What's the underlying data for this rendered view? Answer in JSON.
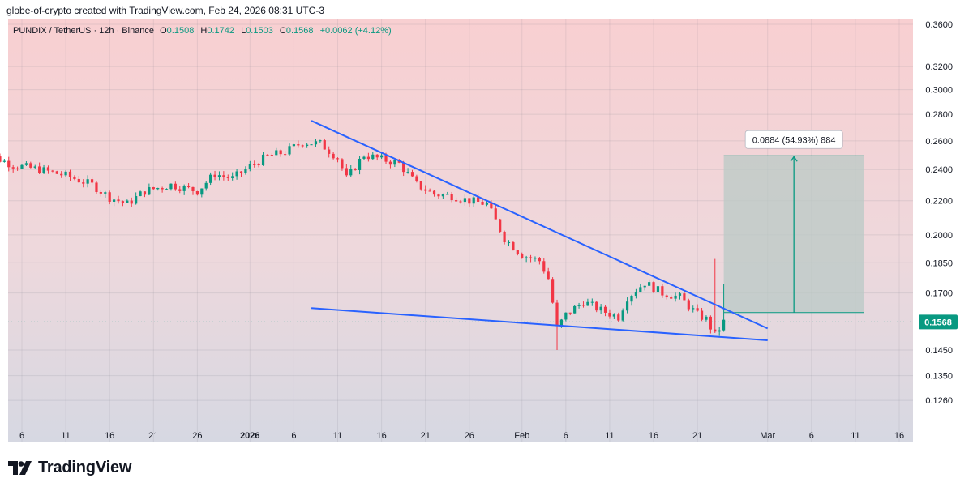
{
  "credit": "globe-of-crypto created with TradingView.com, Feb 24, 2026 08:31 UTC-3",
  "legend": {
    "symbol": "PUNDIX / TetherUS · 12h · Binance",
    "open_label": "O",
    "open": "0.1508",
    "high_label": "H",
    "high": "0.1742",
    "low_label": "L",
    "low": "0.1503",
    "close_label": "C",
    "close": "0.1568",
    "change": "+0.0062 (+4.12%)"
  },
  "brand": {
    "name": "TradingView",
    "icon": "tradingview-logo-icon"
  },
  "colors": {
    "up": "#089981",
    "down": "#f23645",
    "trendline": "#2962ff",
    "price_tag": "#089981",
    "measure_box": "#b9c9c6",
    "measure_arrow": "#089981"
  },
  "chart_data": {
    "type": "candlestick",
    "symbol": "PUNDIX / TetherUS",
    "interval": "12h",
    "exchange": "Binance",
    "last_price": "0.1568",
    "y_scale": "log",
    "y_ticks": [
      "0.3600",
      "0.3200",
      "0.3000",
      "0.2800",
      "0.2600",
      "0.2400",
      "0.2200",
      "0.2000",
      "0.1850",
      "0.1700",
      "0.1450",
      "0.1350",
      "0.1260"
    ],
    "x_ticks": [
      {
        "label": "6",
        "date": "2025-12-06"
      },
      {
        "label": "11",
        "date": "2025-12-11"
      },
      {
        "label": "16",
        "date": "2025-12-16"
      },
      {
        "label": "21",
        "date": "2025-12-21"
      },
      {
        "label": "26",
        "date": "2025-12-26"
      },
      {
        "label": "2026",
        "date": "2026-01-01"
      },
      {
        "label": "6",
        "date": "2026-01-06"
      },
      {
        "label": "11",
        "date": "2026-01-11"
      },
      {
        "label": "16",
        "date": "2026-01-16"
      },
      {
        "label": "21",
        "date": "2026-01-21"
      },
      {
        "label": "26",
        "date": "2026-01-26"
      },
      {
        "label": "Feb",
        "date": "2026-02-01"
      },
      {
        "label": "6",
        "date": "2026-02-06"
      },
      {
        "label": "11",
        "date": "2026-02-11"
      },
      {
        "label": "16",
        "date": "2026-02-16"
      },
      {
        "label": "21",
        "date": "2026-02-21"
      },
      {
        "label": "Mar",
        "date": "2026-03-01"
      },
      {
        "label": "6",
        "date": "2026-03-06"
      },
      {
        "label": "11",
        "date": "2026-03-11"
      },
      {
        "label": "16",
        "date": "2026-03-16"
      }
    ],
    "price_path": [
      [
        "2025-12-01",
        0.256
      ],
      [
        "2025-12-03",
        0.248
      ],
      [
        "2025-12-05",
        0.243
      ],
      [
        "2025-12-08",
        0.24
      ],
      [
        "2025-12-11",
        0.236
      ],
      [
        "2025-12-14",
        0.23
      ],
      [
        "2025-12-16",
        0.222
      ],
      [
        "2025-12-18",
        0.218
      ],
      [
        "2025-12-20",
        0.226
      ],
      [
        "2025-12-23",
        0.23
      ],
      [
        "2025-12-26",
        0.226
      ],
      [
        "2025-12-28",
        0.237
      ],
      [
        "2025-12-30",
        0.234
      ],
      [
        "2026-01-01",
        0.242
      ],
      [
        "2026-01-03",
        0.249
      ],
      [
        "2026-01-05",
        0.252
      ],
      [
        "2026-01-07",
        0.259
      ],
      [
        "2026-01-09",
        0.258
      ],
      [
        "2026-01-11",
        0.248
      ],
      [
        "2026-01-12",
        0.234
      ],
      [
        "2026-01-14",
        0.25
      ],
      [
        "2026-01-16",
        0.247
      ],
      [
        "2026-01-18",
        0.244
      ],
      [
        "2026-01-20",
        0.23
      ],
      [
        "2026-01-22",
        0.224
      ],
      [
        "2026-01-24",
        0.223
      ],
      [
        "2026-01-26",
        0.22
      ],
      [
        "2026-01-28",
        0.218
      ],
      [
        "2026-01-29",
        0.208
      ],
      [
        "2026-01-30",
        0.198
      ],
      [
        "2026-02-01",
        0.189
      ],
      [
        "2026-02-03",
        0.186
      ],
      [
        "2026-02-04",
        0.177
      ],
      [
        "2026-02-05",
        0.154
      ],
      [
        "2026-02-06",
        0.16
      ],
      [
        "2026-02-08",
        0.166
      ],
      [
        "2026-02-10",
        0.162
      ],
      [
        "2026-02-12",
        0.159
      ],
      [
        "2026-02-13",
        0.168
      ],
      [
        "2026-02-15",
        0.175
      ],
      [
        "2026-02-17",
        0.17
      ],
      [
        "2026-02-19",
        0.168
      ],
      [
        "2026-02-21",
        0.16
      ],
      [
        "2026-02-22",
        0.158
      ],
      [
        "2026-02-23",
        0.151
      ],
      [
        "2026-02-24",
        0.1568
      ]
    ],
    "spikes": [
      {
        "date": "2026-02-05",
        "low": 0.145
      },
      {
        "date": "2026-02-23",
        "high": 0.187
      },
      {
        "date": "2026-02-24",
        "high": 0.1742
      }
    ],
    "trendlines": [
      {
        "name": "upper",
        "start": [
          "2026-01-08",
          0.275
        ],
        "end": [
          "2026-03-01",
          0.154
        ]
      },
      {
        "name": "lower",
        "start": [
          "2026-01-08",
          0.163
        ],
        "end": [
          "2026-03-01",
          0.149
        ]
      }
    ],
    "measure": {
      "label": "0.0884 (54.93%) 884",
      "from_date": "2026-02-24",
      "to_date": "2026-03-12",
      "low": 0.161,
      "high": 0.2494
    }
  }
}
